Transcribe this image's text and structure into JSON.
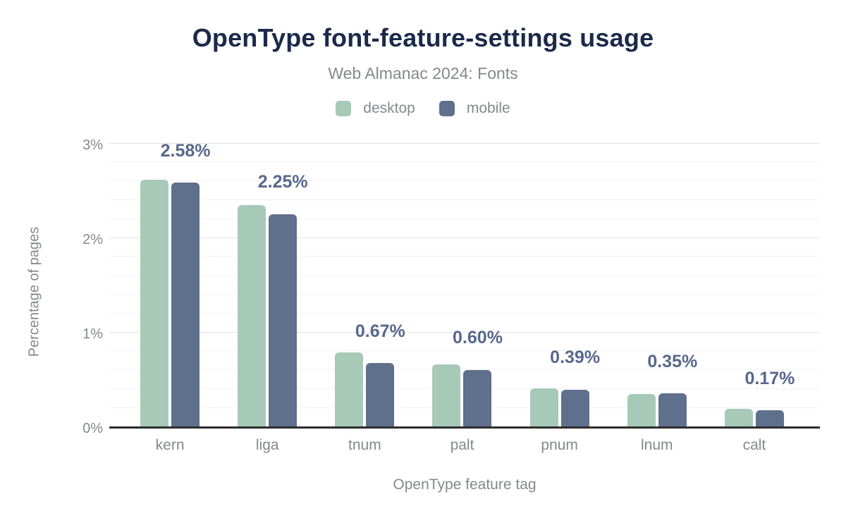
{
  "chart_data": {
    "type": "bar",
    "title": "OpenType font-feature-settings usage",
    "subtitle": "Web Almanac 2024: Fonts",
    "categories": [
      "kern",
      "liga",
      "tnum",
      "palt",
      "pnum",
      "lnum",
      "calt"
    ],
    "series": [
      {
        "name": "desktop",
        "color": "#a7c9b8",
        "values": [
          2.61,
          2.34,
          0.78,
          0.66,
          0.4,
          0.34,
          0.19
        ]
      },
      {
        "name": "mobile",
        "color": "#5f708d",
        "values": [
          2.58,
          2.25,
          0.67,
          0.6,
          0.39,
          0.35,
          0.17
        ]
      }
    ],
    "annotations": {
      "series": "mobile",
      "labels": [
        "2.58%",
        "2.25%",
        "0.67%",
        "0.60%",
        "0.39%",
        "0.35%",
        "0.17%"
      ]
    },
    "xlabel": "OpenType feature tag",
    "ylabel": "Percentage of pages",
    "ylim": [
      0,
      3
    ],
    "yticks": [
      {
        "value": 0,
        "label": "0%"
      },
      {
        "value": 1,
        "label": "1%"
      },
      {
        "value": 2,
        "label": "2%"
      },
      {
        "value": 3,
        "label": "3%"
      }
    ],
    "minor_grid_step": 0.2,
    "grid": true,
    "legend_position": "top"
  },
  "style": {
    "title_color": "#1b2a4a",
    "text_color": "#85888c",
    "annotation_color": "#57688d",
    "axis_color": "#2d2d2d",
    "grid_minor_color": "#f3f3f3",
    "grid_major_color": "#e2e2e2"
  }
}
